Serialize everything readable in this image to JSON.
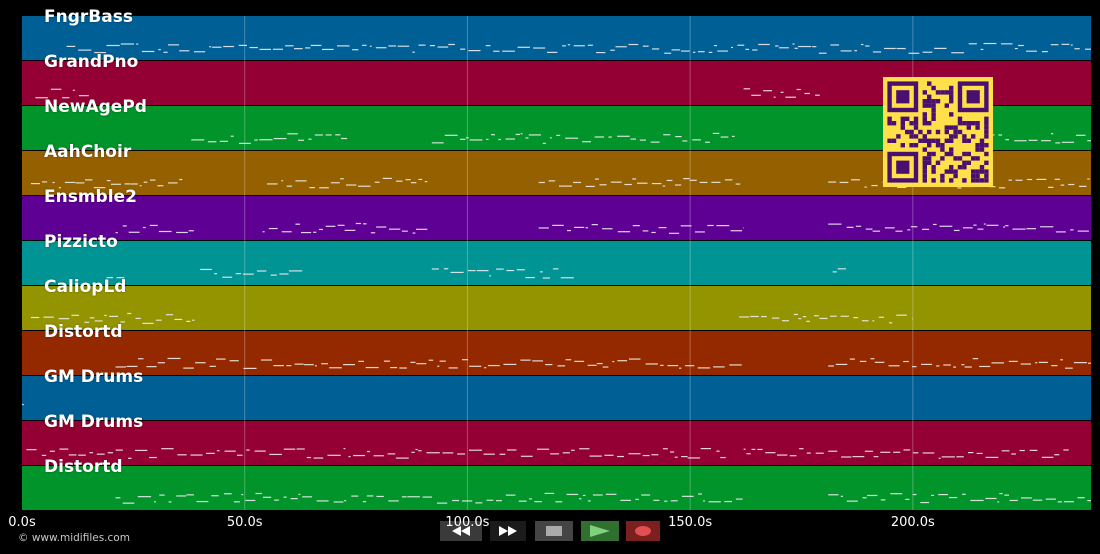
{
  "tracks": [
    {
      "name": "FngrBass",
      "color": "#005f94"
    },
    {
      "name": "GrandPno",
      "color": "#940033"
    },
    {
      "name": "NewAgePd",
      "color": "#00942a"
    },
    {
      "name": "AahChoir",
      "color": "#946000"
    },
    {
      "name": "Ensmble2",
      "color": "#5e0094"
    },
    {
      "name": "Pizzicto",
      "color": "#009494"
    },
    {
      "name": "CaliopLd",
      "color": "#949400"
    },
    {
      "name": "Distortd",
      "color": "#942900"
    },
    {
      "name": "GM Drums",
      "color": "#005f94"
    },
    {
      "name": "GM Drums",
      "color": "#940033"
    },
    {
      "name": "Distortd",
      "color": "#00942a"
    }
  ],
  "time_axis": {
    "ticks": [
      {
        "value": 0,
        "label": "0.0s"
      },
      {
        "value": 50,
        "label": "50.0s"
      },
      {
        "value": 100,
        "label": "100.0s"
      },
      {
        "value": 150,
        "label": "150.0s"
      },
      {
        "value": 200,
        "label": "200.0s"
      }
    ],
    "max": 240
  },
  "transport": {
    "rewind_icon": "rewind-icon",
    "fast_forward_icon": "fast-forward-icon",
    "stop_icon": "stop-icon",
    "play_icon": "play-icon",
    "record_icon": "record-icon"
  },
  "credit": "© www.midifiles.com",
  "qr_code": {
    "color": "#ffe04a",
    "dark": "#4a1070"
  }
}
